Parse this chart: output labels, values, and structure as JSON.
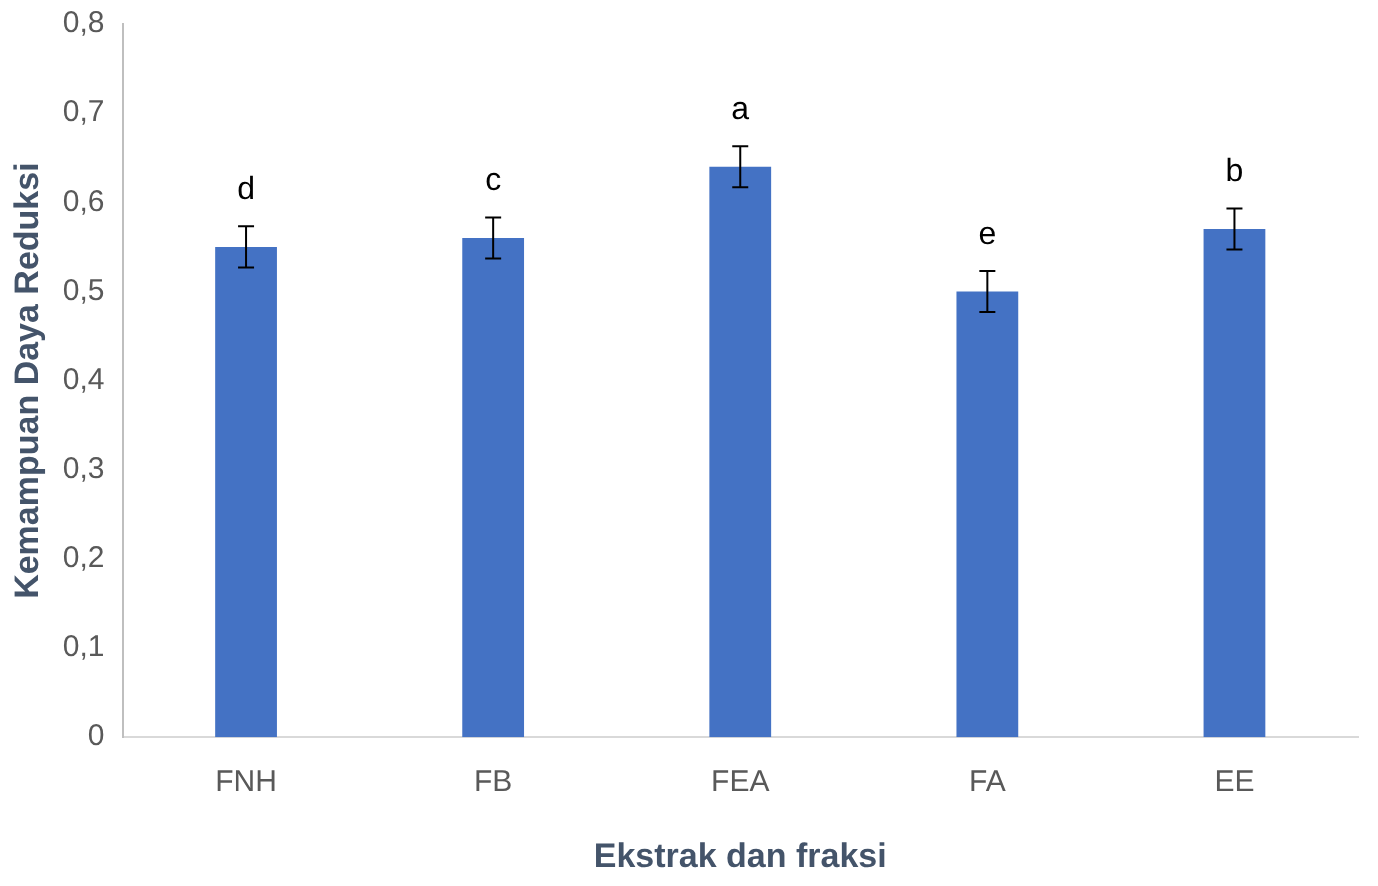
{
  "chart_data": {
    "type": "bar",
    "xlabel": "Ekstrak dan fraksi",
    "ylabel": "Kemampuan Daya Reduksi",
    "categories": [
      "FNH",
      "FB",
      "FEA",
      "FA",
      "EE"
    ],
    "values": [
      0.55,
      0.56,
      0.64,
      0.5,
      0.57
    ],
    "errors": [
      0.023,
      0.023,
      0.023,
      0.023,
      0.023
    ],
    "color": "#4472c4",
    "ylim": [
      0,
      0.8
    ],
    "yticks": [
      {
        "value": 0,
        "label": "0"
      },
      {
        "value": 0.1,
        "label": "0,1"
      },
      {
        "value": 0.2,
        "label": "0,2"
      },
      {
        "value": 0.3,
        "label": "0,3"
      },
      {
        "value": 0.4,
        "label": "0,4"
      },
      {
        "value": 0.5,
        "label": "0,5"
      },
      {
        "value": 0.6,
        "label": "0,6"
      },
      {
        "value": 0.7,
        "label": "0,7"
      },
      {
        "value": 0.8,
        "label": "0,8"
      }
    ],
    "grid": false,
    "annotations": [
      "d",
      "c",
      "a",
      "e",
      "b"
    ]
  }
}
